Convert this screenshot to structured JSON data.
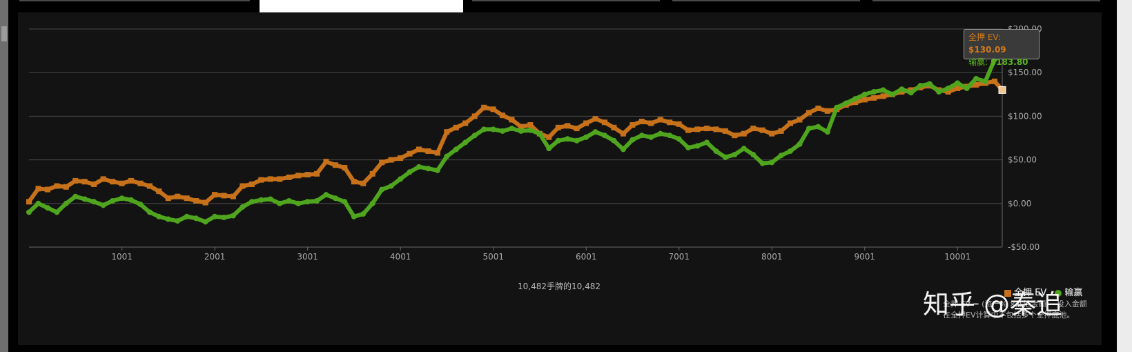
{
  "colors": {
    "all_in_ev": "#c7721b",
    "winnings": "#4fa51e",
    "background": "#131313"
  },
  "footer": {
    "hands_label": "10,482手牌的10,482"
  },
  "tooltip": {
    "ev_label": "全押 EV:",
    "ev_value": "$130.09",
    "win_label": "输赢:",
    "win_value": "$183.80"
  },
  "legend": {
    "ev": "全押 EV",
    "win": "输赢"
  },
  "note": {
    "line1": "全押 EV = (资产% ×底池金额) - 投入金额",
    "line2": "在全押EV计算中不包括多个全押底池。"
  },
  "watermark": "知乎 @秦追",
  "chart_data": {
    "type": "line",
    "title": "",
    "xlabel": "",
    "ylabel": "",
    "xlim": [
      0,
      10482
    ],
    "ylim": [
      -50,
      200
    ],
    "x_ticks": [
      1001,
      2001,
      3001,
      4001,
      5001,
      6001,
      7001,
      8001,
      9001,
      10001
    ],
    "y_ticks": [
      {
        "v": 200,
        "label": "$200.00"
      },
      {
        "v": 150,
        "label": "$150.00"
      },
      {
        "v": 100,
        "label": "$100.00"
      },
      {
        "v": 50,
        "label": "$50.00"
      },
      {
        "v": 0,
        "label": "$0.00"
      },
      {
        "v": -50,
        "label": "-$50.00"
      }
    ],
    "x": [
      0,
      100,
      200,
      300,
      400,
      500,
      600,
      700,
      800,
      900,
      1000,
      1100,
      1200,
      1300,
      1400,
      1500,
      1600,
      1700,
      1800,
      1900,
      2000,
      2100,
      2200,
      2300,
      2400,
      2500,
      2600,
      2700,
      2800,
      2900,
      3000,
      3100,
      3200,
      3300,
      3400,
      3500,
      3600,
      3700,
      3800,
      3900,
      4000,
      4100,
      4200,
      4300,
      4400,
      4500,
      4600,
      4700,
      4800,
      4900,
      5000,
      5100,
      5200,
      5300,
      5400,
      5500,
      5600,
      5700,
      5800,
      5900,
      6000,
      6100,
      6200,
      6300,
      6400,
      6500,
      6600,
      6700,
      6800,
      6900,
      7000,
      7100,
      7200,
      7300,
      7400,
      7500,
      7600,
      7700,
      7800,
      7900,
      8000,
      8100,
      8200,
      8300,
      8400,
      8500,
      8600,
      8700,
      8800,
      8900,
      9000,
      9100,
      9200,
      9300,
      9400,
      9500,
      9600,
      9700,
      9800,
      9900,
      10000,
      10100,
      10200,
      10300,
      10400,
      10482
    ],
    "series": [
      {
        "name": "全押 EV",
        "values": [
          2,
          17,
          16,
          20,
          19,
          26,
          25,
          22,
          28,
          25,
          23,
          26,
          23,
          20,
          14,
          6,
          8,
          6,
          3,
          1,
          10,
          9,
          8,
          20,
          22,
          27,
          28,
          28,
          30,
          32,
          33,
          34,
          48,
          44,
          41,
          25,
          23,
          34,
          47,
          50,
          52,
          57,
          62,
          60,
          58,
          82,
          87,
          92,
          100,
          110,
          108,
          101,
          96,
          88,
          90,
          80,
          76,
          87,
          89,
          86,
          92,
          97,
          93,
          87,
          80,
          90,
          94,
          92,
          96,
          93,
          91,
          84,
          85,
          86,
          85,
          83,
          78,
          80,
          86,
          84,
          80,
          83,
          92,
          96,
          104,
          109,
          106,
          108,
          113,
          116,
          119,
          121,
          123,
          125,
          128,
          130,
          133,
          135,
          130,
          128,
          132,
          134,
          136,
          138,
          140,
          130.09
        ]
      },
      {
        "name": "输赢",
        "values": [
          -10,
          0,
          -5,
          -10,
          0,
          8,
          5,
          2,
          -2,
          3,
          6,
          4,
          -1,
          -10,
          -15,
          -18,
          -20,
          -15,
          -17,
          -21,
          -15,
          -16,
          -14,
          -4,
          2,
          4,
          5,
          0,
          3,
          0,
          2,
          3,
          10,
          6,
          2,
          -15,
          -12,
          0,
          16,
          20,
          28,
          36,
          42,
          40,
          38,
          54,
          62,
          70,
          78,
          85,
          85,
          83,
          86,
          83,
          84,
          80,
          63,
          72,
          74,
          72,
          76,
          82,
          78,
          72,
          62,
          73,
          78,
          76,
          80,
          78,
          74,
          64,
          66,
          70,
          60,
          53,
          56,
          63,
          56,
          46,
          47,
          55,
          60,
          68,
          86,
          88,
          82,
          110,
          115,
          120,
          125,
          128,
          130,
          125,
          131,
          127,
          135,
          137,
          128,
          132,
          138,
          132,
          143,
          140,
          165,
          183.8
        ]
      }
    ]
  }
}
